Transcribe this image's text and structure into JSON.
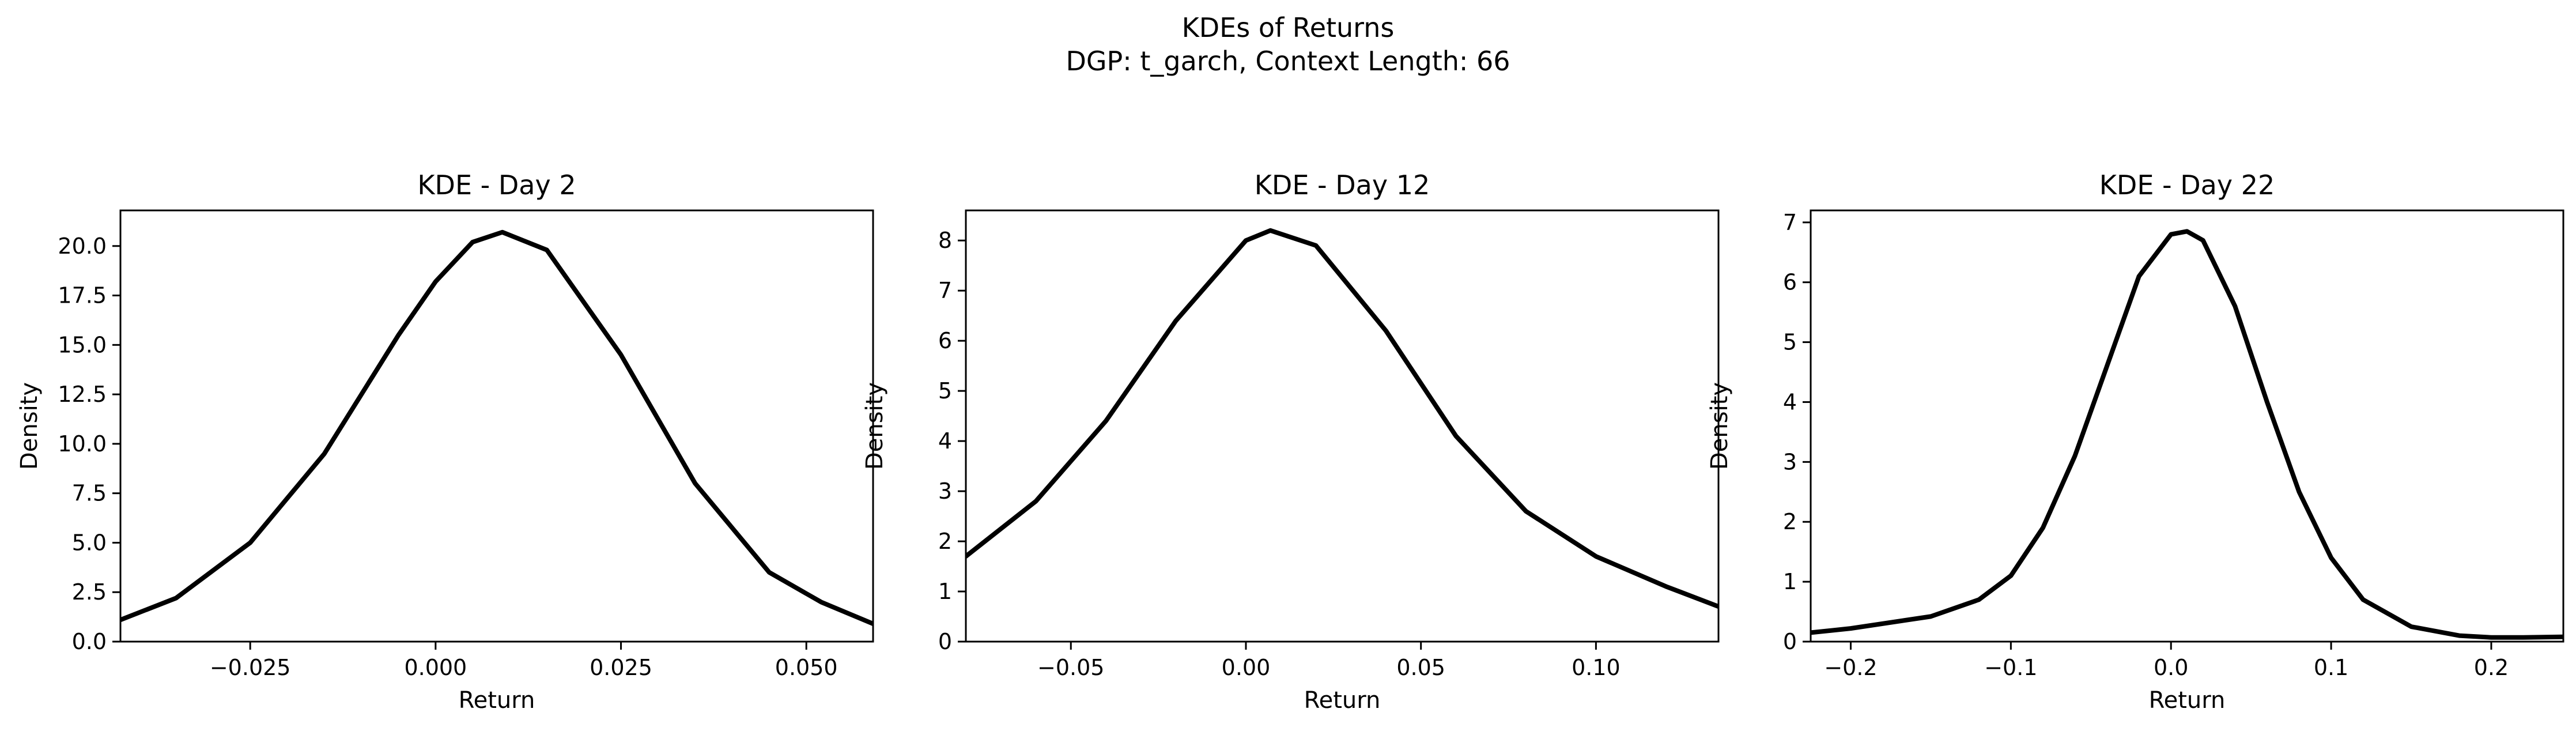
{
  "figure": {
    "title": "KDEs of Returns",
    "subtitle": "DGP: t_garch, Context Length: 66"
  },
  "chart_data": [
    {
      "type": "line",
      "title": "KDE - Day 2",
      "xlabel": "Return",
      "ylabel": "Density",
      "xlim": [
        -0.0425,
        0.059
      ],
      "ylim": [
        0,
        21.8
      ],
      "grid": false,
      "legend": "none",
      "line_color": "#000000",
      "xticks": [
        -0.025,
        0.0,
        0.025,
        0.05
      ],
      "xtick_labels": [
        "−0.025",
        "0.000",
        "0.025",
        "0.050"
      ],
      "yticks": [
        0.0,
        2.5,
        5.0,
        7.5,
        10.0,
        12.5,
        15.0,
        17.5,
        20.0
      ],
      "ytick_labels": [
        "0.0",
        "2.5",
        "5.0",
        "7.5",
        "10.0",
        "12.5",
        "15.0",
        "17.5",
        "20.0"
      ],
      "series": [
        {
          "x": [
            -0.0425,
            -0.035,
            -0.025,
            -0.015,
            -0.005,
            0.0,
            0.005,
            0.009,
            0.015,
            0.025,
            0.035,
            0.045,
            0.052,
            0.059
          ],
          "y": [
            1.1,
            2.2,
            5.0,
            9.5,
            15.5,
            18.2,
            20.2,
            20.7,
            19.8,
            14.5,
            8.0,
            3.5,
            2.0,
            0.9
          ]
        }
      ]
    },
    {
      "type": "line",
      "title": "KDE - Day 12",
      "xlabel": "Return",
      "ylabel": "Density",
      "xlim": [
        -0.08,
        0.135
      ],
      "ylim": [
        0,
        8.6
      ],
      "grid": false,
      "legend": "none",
      "line_color": "#000000",
      "xticks": [
        -0.05,
        0.0,
        0.05,
        0.1
      ],
      "xtick_labels": [
        "−0.05",
        "0.00",
        "0.05",
        "0.10"
      ],
      "yticks": [
        0,
        1,
        2,
        3,
        4,
        5,
        6,
        7,
        8
      ],
      "ytick_labels": [
        "0",
        "1",
        "2",
        "3",
        "4",
        "5",
        "6",
        "7",
        "8"
      ],
      "series": [
        {
          "x": [
            -0.08,
            -0.06,
            -0.04,
            -0.02,
            0.0,
            0.007,
            0.02,
            0.04,
            0.06,
            0.08,
            0.1,
            0.12,
            0.135
          ],
          "y": [
            1.7,
            2.8,
            4.4,
            6.4,
            8.0,
            8.2,
            7.9,
            6.2,
            4.1,
            2.6,
            1.7,
            1.1,
            0.7
          ]
        }
      ]
    },
    {
      "type": "line",
      "title": "KDE - Day 22",
      "xlabel": "Return",
      "ylabel": "Density",
      "xlim": [
        -0.225,
        0.245
      ],
      "ylim": [
        0,
        7.2
      ],
      "grid": false,
      "legend": "none",
      "line_color": "#000000",
      "xticks": [
        -0.2,
        -0.1,
        0.0,
        0.1,
        0.2
      ],
      "xtick_labels": [
        "−0.2",
        "−0.1",
        "0.0",
        "0.1",
        "0.2"
      ],
      "yticks": [
        0,
        1,
        2,
        3,
        4,
        5,
        6,
        7
      ],
      "ytick_labels": [
        "0",
        "1",
        "2",
        "3",
        "4",
        "5",
        "6",
        "7"
      ],
      "series": [
        {
          "x": [
            -0.225,
            -0.2,
            -0.15,
            -0.12,
            -0.1,
            -0.08,
            -0.06,
            -0.04,
            -0.02,
            0.0,
            0.01,
            0.02,
            0.04,
            0.06,
            0.08,
            0.1,
            0.12,
            0.15,
            0.18,
            0.2,
            0.22,
            0.245
          ],
          "y": [
            0.15,
            0.22,
            0.42,
            0.7,
            1.1,
            1.9,
            3.1,
            4.6,
            6.1,
            6.8,
            6.85,
            6.7,
            5.6,
            4.0,
            2.5,
            1.4,
            0.7,
            0.25,
            0.1,
            0.07,
            0.07,
            0.08
          ]
        }
      ]
    }
  ]
}
